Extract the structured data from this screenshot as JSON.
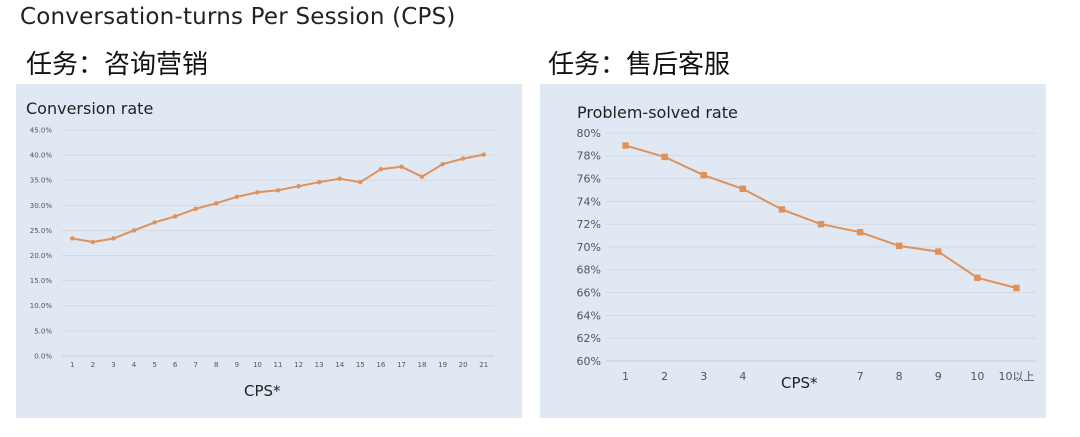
{
  "page_title": "Conversation-turns Per Session (CPS)",
  "chart_data": [
    {
      "type": "line",
      "task_title": "任务：咨询营销",
      "title": "Conversion rate",
      "xlabel": "CPS*",
      "ylabel": "",
      "categories": [
        "1",
        "2",
        "3",
        "4",
        "5",
        "6",
        "7",
        "8",
        "9",
        "10",
        "11",
        "12",
        "13",
        "14",
        "15",
        "16",
        "17",
        "18",
        "19",
        "20",
        "21"
      ],
      "yticks": [
        "0.0%",
        "5.0%",
        "10.0%",
        "15.0%",
        "20.0%",
        "25.0%",
        "30.0%",
        "35.0%",
        "40.0%",
        "45.0%"
      ],
      "ylim": [
        0,
        45
      ],
      "series": [
        {
          "values": [
            23.4,
            22.7,
            23.4,
            25.0,
            26.6,
            27.8,
            29.3,
            30.4,
            31.7,
            32.6,
            33.0,
            33.8,
            34.6,
            35.3,
            34.6,
            37.2,
            37.7,
            35.7,
            38.2,
            39.3,
            40.1
          ]
        }
      ],
      "color": "#e0915a",
      "marker": "circle",
      "grid": true
    },
    {
      "type": "line",
      "task_title": "任务：售后客服",
      "title": "Problem-solved rate",
      "xlabel": "CPS*",
      "ylabel": "",
      "categories": [
        "1",
        "2",
        "3",
        "4",
        "",
        "",
        "7",
        "8",
        "9",
        "10",
        "10以上"
      ],
      "yticks": [
        "60%",
        "62%",
        "64%",
        "66%",
        "68%",
        "70%",
        "72%",
        "74%",
        "76%",
        "78%",
        "80%"
      ],
      "ylim": [
        60,
        80
      ],
      "series": [
        {
          "values": [
            78.9,
            77.9,
            76.3,
            75.1,
            73.3,
            72.0,
            71.3,
            70.1,
            69.6,
            67.3,
            66.4
          ]
        }
      ],
      "color": "#e0915a",
      "marker": "square",
      "grid": true
    }
  ]
}
